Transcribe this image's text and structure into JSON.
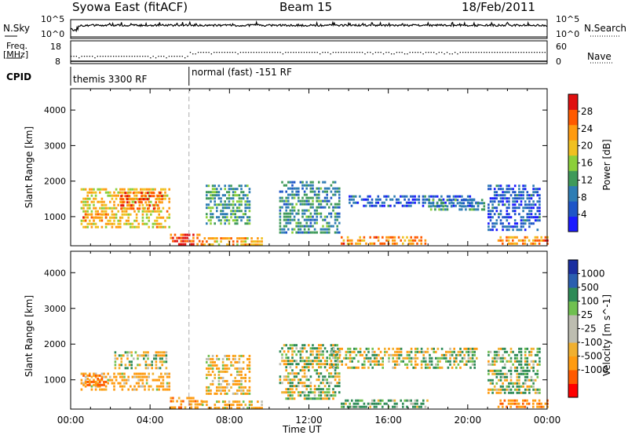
{
  "header": {
    "station": "Syowa East (fitACF)",
    "beam": "Beam 15",
    "date": "18/Feb/2011"
  },
  "nsky_panel": {
    "left_label": "N.Sky",
    "left_ticks": [
      "10^5",
      "10^0"
    ],
    "right_label": "N.Search",
    "right_ticks": [
      "10^5",
      "10^0"
    ]
  },
  "freq_panel": {
    "left_label_line1": "Freq.",
    "left_label_line2": "[MHz]",
    "left_ticks": [
      "18",
      "8"
    ],
    "right_label": "Nave",
    "right_ticks": [
      "60",
      "0"
    ]
  },
  "cpid_panel": {
    "label": "CPID",
    "segments": [
      {
        "text": "themis 3300 RF",
        "start_hour": 0
      },
      {
        "text": "normal (fast) -151 RF",
        "start_hour": 6
      }
    ]
  },
  "colors": {
    "power_scale": [
      "#1a1aff",
      "#1e55c8",
      "#2e7db4",
      "#3f9a5a",
      "#8ccf3a",
      "#f0c020",
      "#ff9b10",
      "#ff5a00",
      "#e01010"
    ],
    "velocity_scale": [
      "#ff0000",
      "#ff5a00",
      "#ff9b10",
      "#f0b030",
      "#bdbdb0",
      "#bdbdb0",
      "#70c050",
      "#2e8b57",
      "#2a5fb0",
      "#1a2fa0"
    ]
  },
  "chart_data": [
    {
      "type": "heatmap",
      "panel": "power",
      "ylabel": "Slant Range [km]",
      "yticks": [
        1000,
        2000,
        3000,
        4000
      ],
      "ylim": [
        180,
        4600
      ],
      "xlim": [
        0,
        24
      ],
      "colorbar_label": "Power [dB]",
      "colorbar_ticks": [
        4,
        8,
        12,
        16,
        20,
        24,
        28
      ],
      "colorbar_range": [
        0,
        32
      ],
      "regions": [
        {
          "t0": 0.5,
          "t1": 5.0,
          "r0": 700,
          "r1": 1800,
          "level": 20
        },
        {
          "t0": 2.5,
          "t1": 4.6,
          "r0": 1200,
          "r1": 1700,
          "level": 26
        },
        {
          "t0": 0.6,
          "t1": 1.8,
          "r0": 850,
          "r1": 1100,
          "level": 24
        },
        {
          "t0": 5.0,
          "t1": 6.6,
          "r0": 200,
          "r1": 520,
          "level": 28
        },
        {
          "t0": 6.6,
          "t1": 9.6,
          "r0": 230,
          "r1": 420,
          "level": 22
        },
        {
          "t0": 6.8,
          "t1": 9.0,
          "r0": 800,
          "r1": 1900,
          "level": 12
        },
        {
          "t0": 10.5,
          "t1": 13.5,
          "r0": 500,
          "r1": 2000,
          "level": 10
        },
        {
          "t0": 13.6,
          "t1": 18.0,
          "r0": 230,
          "r1": 450,
          "level": 24
        },
        {
          "t0": 14.0,
          "t1": 20.5,
          "r0": 1300,
          "r1": 1600,
          "level": 6
        },
        {
          "t0": 18.0,
          "t1": 20.8,
          "r0": 1200,
          "r1": 1500,
          "level": 10
        },
        {
          "t0": 21.0,
          "t1": 23.6,
          "r0": 600,
          "r1": 1900,
          "level": 6
        },
        {
          "t0": 21.5,
          "t1": 24.0,
          "r0": 200,
          "r1": 450,
          "level": 24
        }
      ]
    },
    {
      "type": "heatmap",
      "panel": "velocity",
      "ylabel": "Slant Range [km]",
      "yticks": [
        1000,
        2000,
        3000,
        4000
      ],
      "ylim": [
        180,
        4600
      ],
      "xlim": [
        0,
        24
      ],
      "xlabel": "Time UT",
      "xticks": [
        "00:00",
        "04:00",
        "08:00",
        "12:00",
        "16:00",
        "20:00",
        "00:00"
      ],
      "colorbar_label": "Velocity [m s^-1]",
      "colorbar_ticks": [
        "1000",
        "500",
        "100",
        "25",
        "-25",
        "-100",
        "-500",
        "-1000"
      ],
      "regions": [
        {
          "t0": 0.5,
          "t1": 5.0,
          "r0": 700,
          "r1": 1200,
          "level": -200
        },
        {
          "t0": 2.2,
          "t1": 4.8,
          "r0": 1300,
          "r1": 1800,
          "level": 0
        },
        {
          "t0": 0.6,
          "t1": 1.8,
          "r0": 850,
          "r1": 1150,
          "level": -600
        },
        {
          "t0": 5.0,
          "t1": 6.6,
          "r0": 200,
          "r1": 520,
          "level": -300
        },
        {
          "t0": 6.6,
          "t1": 9.6,
          "r0": 230,
          "r1": 420,
          "level": -150
        },
        {
          "t0": 6.8,
          "t1": 9.0,
          "r0": 600,
          "r1": 1700,
          "level": -150
        },
        {
          "t0": 10.5,
          "t1": 13.5,
          "r0": 500,
          "r1": 2000,
          "level": 50
        },
        {
          "t0": 13.6,
          "t1": 18.0,
          "r0": 230,
          "r1": 450,
          "level": 200
        },
        {
          "t0": 13.0,
          "t1": 20.5,
          "r0": 1300,
          "r1": 1900,
          "level": 0
        },
        {
          "t0": 21.0,
          "t1": 23.6,
          "r0": 600,
          "r1": 1900,
          "level": 80
        },
        {
          "t0": 21.5,
          "t1": 24.0,
          "r0": 200,
          "r1": 450,
          "level": -400
        }
      ]
    }
  ]
}
